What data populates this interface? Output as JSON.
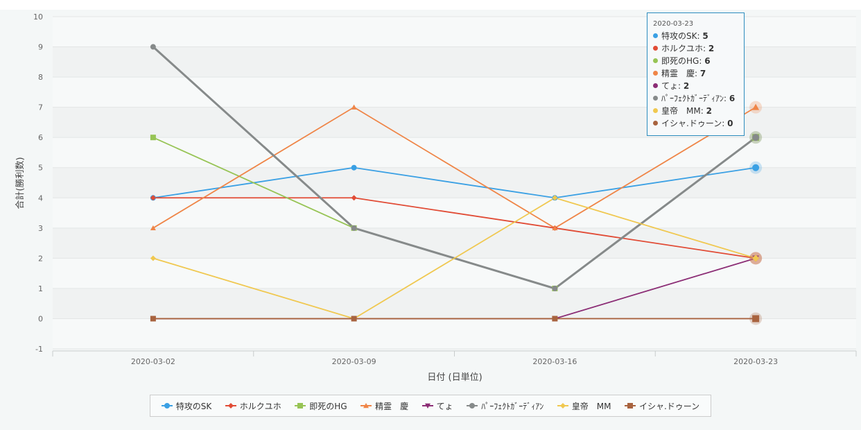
{
  "chart_data": {
    "type": "line",
    "xlabel": "日付 (日単位)",
    "ylabel": "合計(勝利数)",
    "categories": [
      "2020-03-02",
      "2020-03-09",
      "2020-03-16",
      "2020-03-23"
    ],
    "ylim": [
      -1,
      10
    ],
    "yticks": [
      -1,
      0,
      1,
      2,
      3,
      4,
      5,
      6,
      7,
      8,
      9,
      10
    ],
    "grid": "alternating horizontal bands",
    "legend": "bottom",
    "series": [
      {
        "name": "特攻のSK",
        "color": "#3aa0e4",
        "marker": "circle",
        "values": [
          4,
          5,
          4,
          5
        ]
      },
      {
        "name": "ホルクユホ",
        "color": "#e14b35",
        "marker": "diamond",
        "values": [
          4,
          4,
          3,
          2
        ]
      },
      {
        "name": "即死のHG",
        "color": "#97c455",
        "marker": "square",
        "values": [
          6,
          3,
          1,
          6
        ]
      },
      {
        "name": "精霊　慶",
        "color": "#ef8547",
        "marker": "triangle",
        "values": [
          3,
          7,
          3,
          7
        ]
      },
      {
        "name": "てょ",
        "color": "#8b2d75",
        "marker": "triangle-down",
        "values": [
          0,
          0,
          0,
          2
        ]
      },
      {
        "name": "ﾊﾟｰﾌｪｸﾄｶﾞｰﾃﾞｨｱﾝ",
        "color": "#868a8a",
        "marker": "circle",
        "values": [
          9,
          3,
          1,
          6
        ]
      },
      {
        "name": "皇帝　MM",
        "color": "#f0c850",
        "marker": "diamond",
        "values": [
          2,
          0,
          4,
          2
        ]
      },
      {
        "name": "イシャ.ドゥーン",
        "color": "#a8633f",
        "marker": "square",
        "values": [
          0,
          0,
          0,
          0
        ]
      }
    ],
    "tooltip": {
      "date": "2020-03-23",
      "rows": [
        {
          "label": "特攻のSK",
          "value": "5",
          "color": "#3aa0e4"
        },
        {
          "label": "ホルクユホ",
          "value": "2",
          "color": "#e14b35"
        },
        {
          "label": "即死のHG",
          "value": "6",
          "color": "#97c455"
        },
        {
          "label": "精霊　慶",
          "value": "7",
          "color": "#ef8547"
        },
        {
          "label": "てょ",
          "value": "2",
          "color": "#8b2d75"
        },
        {
          "label": "ﾊﾟｰﾌｪｸﾄｶﾞｰﾃﾞｨｱﾝ",
          "value": "6",
          "color": "#868a8a"
        },
        {
          "label": "皇帝　MM",
          "value": "2",
          "color": "#f0c850"
        },
        {
          "label": "イシャ.ドゥーン",
          "value": "0",
          "color": "#a8633f"
        }
      ]
    }
  }
}
